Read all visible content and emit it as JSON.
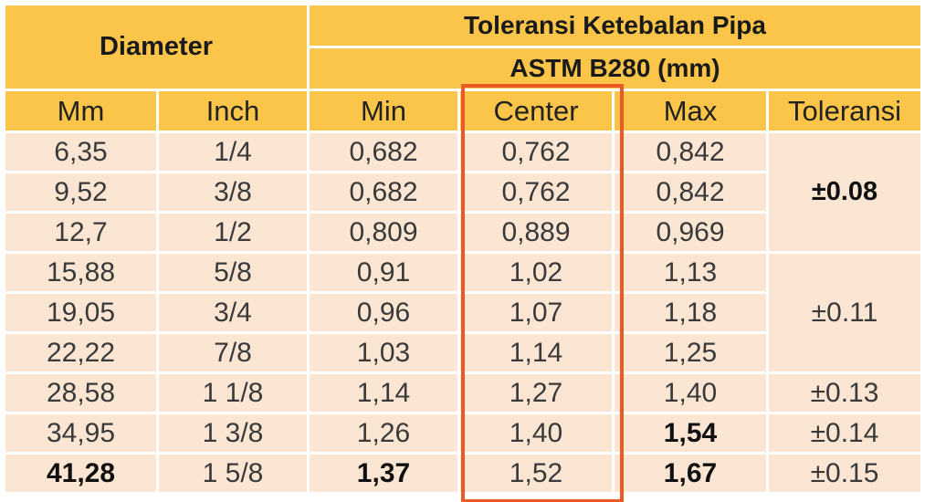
{
  "header": {
    "diameter": "Diameter",
    "title": "Toleransi Ketebalan Pipa",
    "standard": "ASTM B280 (mm)"
  },
  "columns": [
    "Mm",
    "Inch",
    "Min",
    "Center",
    "Max",
    "Toleransi"
  ],
  "rows": [
    {
      "mm": "6,35",
      "inch": "1/4",
      "min": "0,682",
      "center": "0,762",
      "max": "0,842"
    },
    {
      "mm": "9,52",
      "inch": "3/8",
      "min": "0,682",
      "center": "0,762",
      "max": "0,842"
    },
    {
      "mm": "12,7",
      "inch": "1/2",
      "min": "0,809",
      "center": "0,889",
      "max": "0,969"
    },
    {
      "mm": "15,88",
      "inch": "5/8",
      "min": "0,91",
      "center": "1,02",
      "max": "1,13"
    },
    {
      "mm": "19,05",
      "inch": "3/4",
      "min": "0,96",
      "center": "1,07",
      "max": "1,18"
    },
    {
      "mm": "22,22",
      "inch": "7/8",
      "min": "1,03",
      "center": "1,14",
      "max": "1,25"
    },
    {
      "mm": "28,58",
      "inch": "1 1/8",
      "min": "1,14",
      "center": "1,27",
      "max": "1,40"
    },
    {
      "mm": "34,95",
      "inch": "1 3/8",
      "min": "1,26",
      "center": "1,40",
      "max": "1,54"
    },
    {
      "mm": "41,28",
      "inch": "1 5/8",
      "min": "1,37",
      "center": "1,52",
      "max": "1,67"
    }
  ],
  "tolerances": [
    "±0.08",
    "±0.11",
    "±0.13",
    "±0.14",
    "±0.15"
  ],
  "colors": {
    "header_bg": "#fac548",
    "cell_bg": "#fbe6d4",
    "highlight_border": "#ea5a26"
  }
}
